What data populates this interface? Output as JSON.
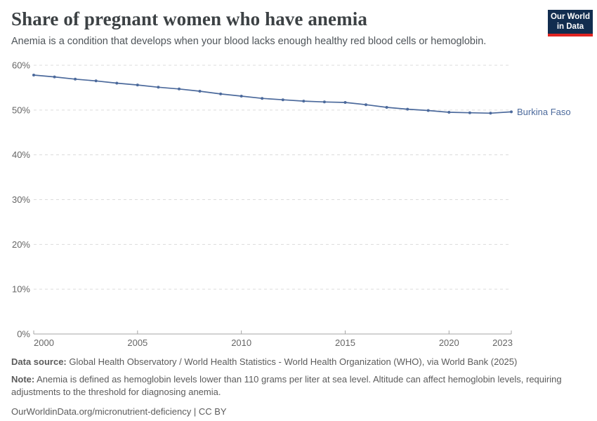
{
  "header": {
    "title": "Share of pregnant women who have anemia",
    "subtitle": "Anemia is a condition that develops when your blood lacks enough healthy red blood cells or hemoglobin.",
    "logo": {
      "line1": "Our World",
      "line2": "in Data",
      "bg_color": "#122d4f",
      "accent_color": "#e02421"
    }
  },
  "chart_data": {
    "type": "line",
    "title": "Share of pregnant women who have anemia",
    "xlabel": "",
    "ylabel": "",
    "xlim": [
      2000,
      2023
    ],
    "ylim": [
      0,
      60
    ],
    "x_ticks": [
      2000,
      2005,
      2010,
      2015,
      2020,
      2023
    ],
    "y_ticks": [
      0,
      10,
      20,
      30,
      40,
      50,
      60
    ],
    "y_tick_format": "{v}%",
    "grid": "horizontal-dashed",
    "legend_position": "end-of-line-label",
    "series": [
      {
        "name": "Burkina Faso",
        "color": "#4c6a9c",
        "x": [
          2000,
          2001,
          2002,
          2003,
          2004,
          2005,
          2006,
          2007,
          2008,
          2009,
          2010,
          2011,
          2012,
          2013,
          2014,
          2015,
          2016,
          2017,
          2018,
          2019,
          2020,
          2021,
          2022,
          2023
        ],
        "values": [
          57.8,
          57.4,
          56.9,
          56.5,
          56.0,
          55.6,
          55.1,
          54.7,
          54.2,
          53.6,
          53.1,
          52.6,
          52.3,
          52.0,
          51.8,
          51.7,
          51.2,
          50.6,
          50.2,
          49.9,
          49.5,
          49.4,
          49.3,
          49.6
        ]
      }
    ]
  },
  "footer": {
    "source_label": "Data source:",
    "source_text": "Global Health Observatory / World Health Statistics - World Health Organization (WHO), via World Bank (2025)",
    "note_label": "Note:",
    "note_text": "Anemia is defined as hemoglobin levels lower than 110 grams per liter at sea level. Altitude can affect hemoglobin levels, requiring adjustments to the threshold for diagnosing anemia.",
    "citation": "OurWorldinData.org/micronutrient-deficiency | CC BY"
  },
  "colors": {
    "line": "#4c6a9c",
    "grid": "#dcdcdc",
    "axis": "#a5a5a5",
    "tick_text": "#666666",
    "title_text": "#3c4144"
  }
}
